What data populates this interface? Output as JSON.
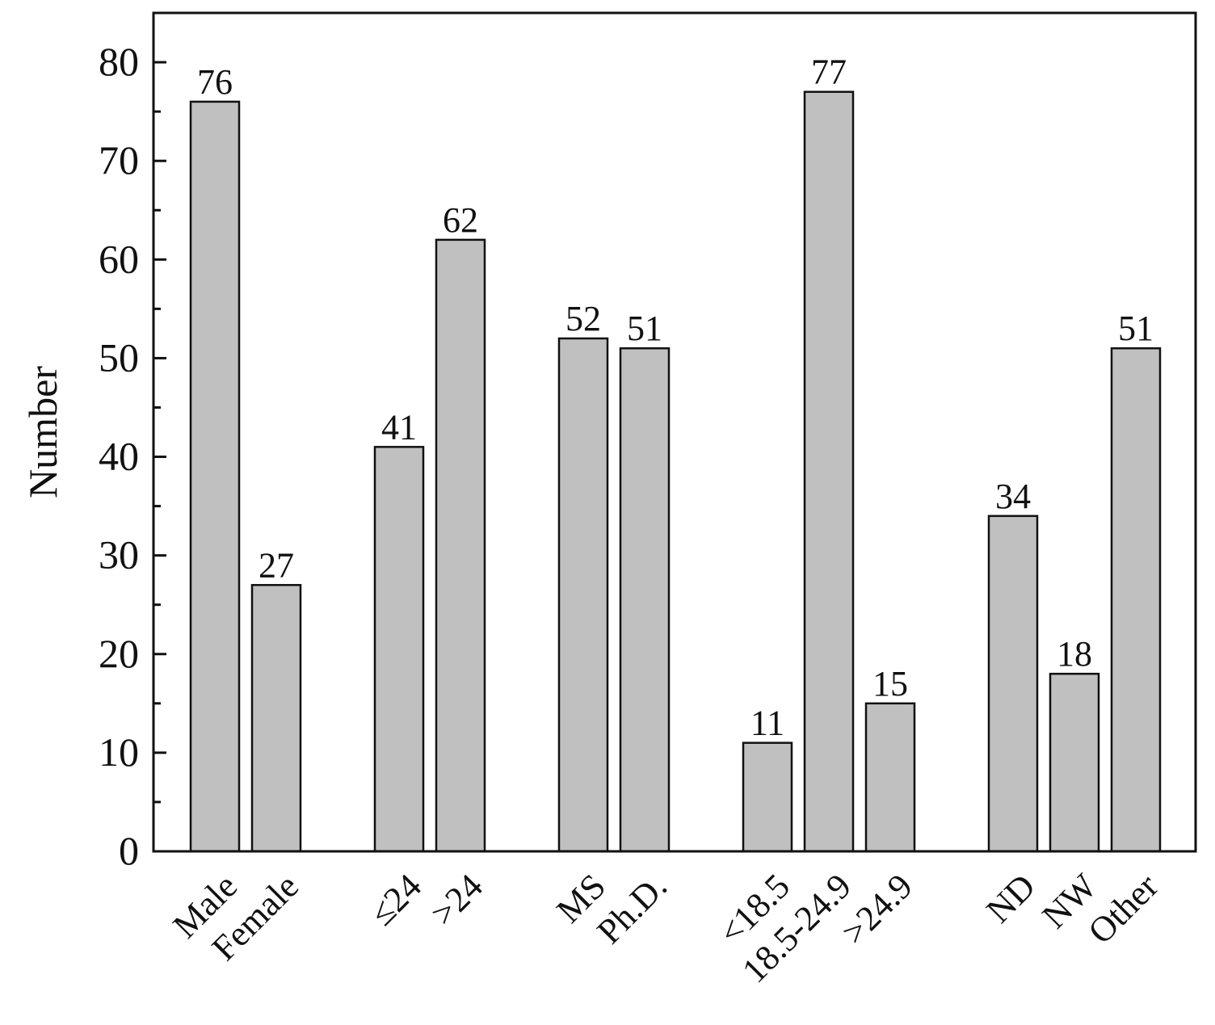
{
  "chart_data": {
    "type": "bar",
    "categories": [
      "Male",
      "Female",
      "≤24",
      ">24",
      "MS",
      "Ph.D.",
      "<18.5",
      "18.5-24.9",
      ">24.9",
      "ND",
      "NW",
      "Other"
    ],
    "groups": [
      [
        "Male",
        "Female"
      ],
      [
        "≤24",
        ">24"
      ],
      [
        "MS",
        "Ph.D."
      ],
      [
        "<18.5",
        "18.5-24.9",
        ">24.9"
      ],
      [
        "ND",
        "NW",
        "Other"
      ]
    ],
    "values": [
      76,
      27,
      41,
      62,
      52,
      51,
      11,
      77,
      15,
      34,
      18,
      51
    ],
    "value_labels": [
      "76",
      "27",
      "41",
      "62",
      "52",
      "51",
      "11",
      "77",
      "15",
      "34",
      "18",
      "51"
    ],
    "title": "",
    "xlabel": "",
    "ylabel": "Number",
    "ylim": [
      0,
      85
    ],
    "yticks": [
      0,
      10,
      20,
      30,
      40,
      50,
      60,
      70,
      80
    ],
    "ytick_labels": [
      "0",
      "10",
      "20",
      "30",
      "40",
      "50",
      "60",
      "70",
      "80"
    ],
    "minor_ytick_step": 5,
    "bar_color": "#c0c0c0",
    "edge_color": "#111111",
    "grid": false,
    "legend": "none"
  }
}
